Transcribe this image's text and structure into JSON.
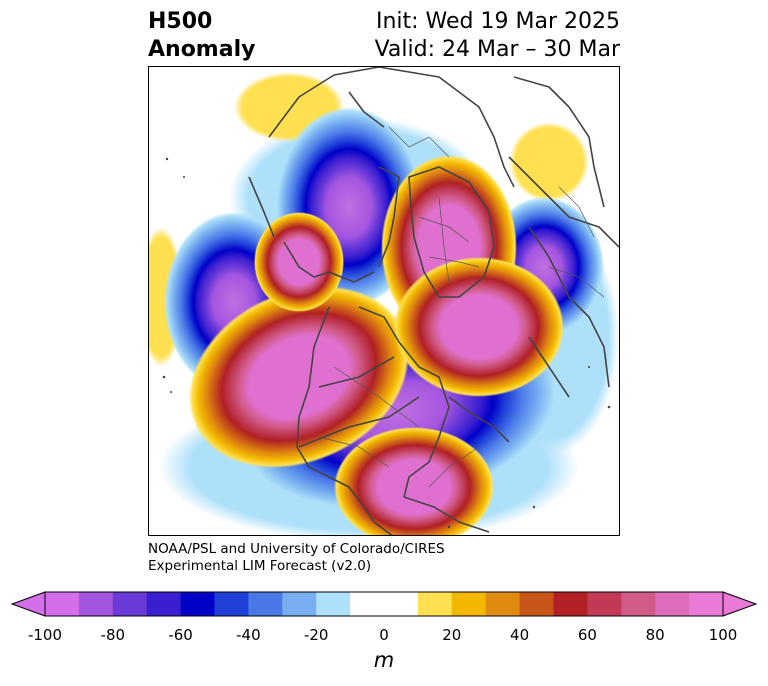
{
  "title": {
    "left_line1": "H500",
    "left_line2": "Anomaly",
    "right_line1": "Init: Wed 19 Mar 2025",
    "right_line2": "Valid: 24 Mar – 30 Mar"
  },
  "credit": {
    "line1": "NOAA/PSL and University of Colorado/CIRES",
    "line2": "Experimental LIM Forecast (v2.0)"
  },
  "colorbar": {
    "unit": "m",
    "ticks": [
      "-100",
      "-80",
      "-60",
      "-40",
      "-20",
      "0",
      "20",
      "40",
      "60",
      "80",
      "100"
    ],
    "colors": [
      "#d36ee8",
      "#a455e0",
      "#6a3ad8",
      "#3a1fd0",
      "#0000c8",
      "#2040d8",
      "#4a78e8",
      "#78aef0",
      "#aee0fa",
      "#ffffff",
      "#ffffff",
      "#ffe050",
      "#f2b800",
      "#e08a10",
      "#c85518",
      "#b02024",
      "#c03a55",
      "#d05a88",
      "#de6cbc",
      "#e97ad6"
    ],
    "min_color": "#d36ee8",
    "max_color": "#e97ad6"
  },
  "map": {
    "projection": "north polar stereographic",
    "positive_core_color": "#e070d0",
    "negative_core_color": "#c070e0"
  }
}
